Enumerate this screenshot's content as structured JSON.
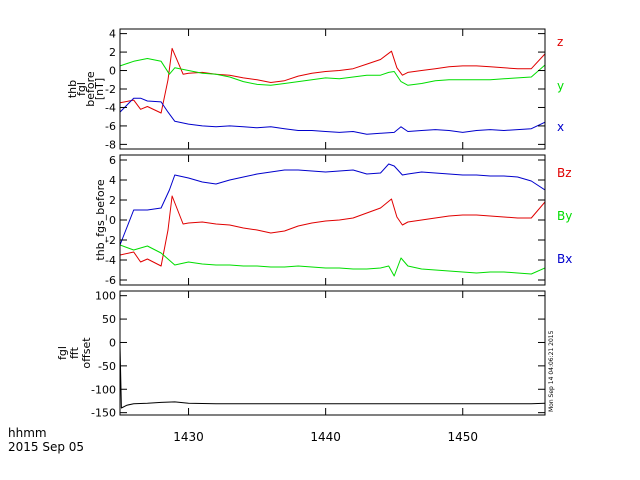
{
  "x_ticks": [
    1430,
    1440,
    1450
  ],
  "footer": {
    "time_format": "hhmm",
    "date": "2015 Sep 05"
  },
  "timestamp": "Mon Sep 14 04:06:21 2015",
  "colors": {
    "red": "#e00000",
    "green": "#00dd00",
    "blue": "#0000cc",
    "black": "#000000"
  },
  "chart_data": [
    {
      "type": "line",
      "ylabel_lines": [
        "thb",
        "fgl",
        "before",
        "[nT]"
      ],
      "xlim": [
        1425,
        1456
      ],
      "ylim": [
        -8.5,
        4.5
      ],
      "yticks": [
        -8,
        -6,
        -4,
        -2,
        0,
        2,
        4
      ],
      "series": [
        {
          "name": "z",
          "color": "#e00000",
          "x": [
            1425,
            1426,
            1426.5,
            1427,
            1428,
            1428.5,
            1428.8,
            1429.2,
            1429.6,
            1430,
            1431,
            1432,
            1433,
            1434,
            1435,
            1436,
            1437,
            1438,
            1439,
            1440,
            1441,
            1442,
            1443,
            1444,
            1444.8,
            1445.2,
            1445.6,
            1446,
            1447,
            1448,
            1449,
            1450,
            1451,
            1452,
            1453,
            1454,
            1455,
            1456
          ],
          "y": [
            -3.5,
            -3.2,
            -4.2,
            -3.9,
            -4.6,
            -1.0,
            2.4,
            1.0,
            -0.4,
            -0.3,
            -0.2,
            -0.4,
            -0.5,
            -0.8,
            -1.0,
            -1.3,
            -1.1,
            -0.6,
            -0.3,
            -0.1,
            0.0,
            0.2,
            0.7,
            1.2,
            2.1,
            0.3,
            -0.5,
            -0.2,
            0.0,
            0.2,
            0.4,
            0.5,
            0.5,
            0.4,
            0.3,
            0.2,
            0.2,
            1.8
          ]
        },
        {
          "name": "y",
          "color": "#00dd00",
          "x": [
            1425,
            1426,
            1427,
            1428,
            1428.6,
            1429,
            1430,
            1431,
            1432,
            1433,
            1434,
            1435,
            1436,
            1437,
            1438,
            1439,
            1440,
            1441,
            1442,
            1443,
            1444,
            1444.6,
            1445,
            1445.5,
            1446,
            1447,
            1448,
            1449,
            1450,
            1451,
            1452,
            1453,
            1454,
            1455,
            1456
          ],
          "y": [
            0.5,
            1.0,
            1.3,
            1.0,
            -0.4,
            0.3,
            0.0,
            -0.3,
            -0.4,
            -0.7,
            -1.2,
            -1.5,
            -1.6,
            -1.4,
            -1.2,
            -1.0,
            -0.8,
            -0.9,
            -0.7,
            -0.5,
            -0.5,
            -0.2,
            -0.1,
            -1.2,
            -1.6,
            -1.4,
            -1.1,
            -1.0,
            -1.0,
            -1.0,
            -1.0,
            -0.9,
            -0.8,
            -0.7,
            0.6
          ]
        },
        {
          "name": "x",
          "color": "#0000cc",
          "x": [
            1425,
            1426,
            1426.5,
            1427,
            1428,
            1428.5,
            1429,
            1430,
            1431,
            1432,
            1433,
            1434,
            1435,
            1436,
            1437,
            1438,
            1439,
            1440,
            1441,
            1442,
            1443,
            1444,
            1445,
            1445.5,
            1446,
            1447,
            1448,
            1449,
            1450,
            1451,
            1452,
            1453,
            1454,
            1455,
            1456
          ],
          "y": [
            -4.5,
            -3.0,
            -3.0,
            -3.3,
            -3.4,
            -4.5,
            -5.5,
            -5.8,
            -6.0,
            -6.1,
            -6.0,
            -6.1,
            -6.2,
            -6.1,
            -6.3,
            -6.5,
            -6.5,
            -6.6,
            -6.7,
            -6.6,
            -6.9,
            -6.8,
            -6.7,
            -6.1,
            -6.6,
            -6.5,
            -6.4,
            -6.5,
            -6.7,
            -6.5,
            -6.4,
            -6.5,
            -6.4,
            -6.3,
            -5.6
          ]
        }
      ]
    },
    {
      "type": "line",
      "ylabel_lines": [
        "thb_fgs_before"
      ],
      "xlim": [
        1425,
        1456
      ],
      "ylim": [
        -6.5,
        6.5
      ],
      "yticks": [
        -6,
        -4,
        -2,
        0,
        2,
        4,
        6
      ],
      "series": [
        {
          "name": "Bz",
          "color": "#e00000",
          "x": [
            1425,
            1426,
            1426.5,
            1427,
            1428,
            1428.5,
            1428.8,
            1429.2,
            1429.6,
            1430,
            1431,
            1432,
            1433,
            1434,
            1435,
            1436,
            1437,
            1438,
            1439,
            1440,
            1441,
            1442,
            1443,
            1444,
            1444.8,
            1445.2,
            1445.6,
            1446,
            1447,
            1448,
            1449,
            1450,
            1451,
            1452,
            1453,
            1454,
            1455,
            1456
          ],
          "y": [
            -3.5,
            -3.2,
            -4.2,
            -3.9,
            -4.6,
            -1.0,
            2.4,
            1.0,
            -0.4,
            -0.3,
            -0.2,
            -0.4,
            -0.5,
            -0.8,
            -1.0,
            -1.3,
            -1.1,
            -0.6,
            -0.3,
            -0.1,
            0.0,
            0.2,
            0.7,
            1.2,
            2.1,
            0.3,
            -0.5,
            -0.2,
            0.0,
            0.2,
            0.4,
            0.5,
            0.5,
            0.4,
            0.3,
            0.2,
            0.2,
            1.8
          ]
        },
        {
          "name": "By",
          "color": "#00dd00",
          "x": [
            1425,
            1426,
            1427,
            1428,
            1429,
            1430,
            1431,
            1432,
            1433,
            1434,
            1435,
            1436,
            1437,
            1438,
            1439,
            1440,
            1441,
            1442,
            1443,
            1444,
            1444.6,
            1445,
            1445.5,
            1446,
            1447,
            1448,
            1449,
            1450,
            1451,
            1452,
            1453,
            1454,
            1455,
            1456
          ],
          "y": [
            -2.5,
            -3.0,
            -2.6,
            -3.3,
            -4.5,
            -4.2,
            -4.4,
            -4.5,
            -4.5,
            -4.6,
            -4.6,
            -4.7,
            -4.7,
            -4.6,
            -4.7,
            -4.8,
            -4.8,
            -4.9,
            -4.9,
            -4.8,
            -4.6,
            -5.6,
            -3.8,
            -4.6,
            -4.9,
            -5.0,
            -5.1,
            -5.2,
            -5.3,
            -5.2,
            -5.2,
            -5.3,
            -5.4,
            -4.8
          ]
        },
        {
          "name": "Bx",
          "color": "#0000cc",
          "x": [
            1425,
            1426,
            1427,
            1428,
            1428.6,
            1429,
            1430,
            1431,
            1432,
            1433,
            1434,
            1435,
            1436,
            1437,
            1438,
            1439,
            1440,
            1441,
            1442,
            1443,
            1444,
            1444.6,
            1445,
            1445.6,
            1446,
            1447,
            1448,
            1449,
            1450,
            1451,
            1452,
            1453,
            1454,
            1455,
            1456
          ],
          "y": [
            -2.5,
            1.0,
            1.0,
            1.2,
            3.0,
            4.5,
            4.2,
            3.8,
            3.6,
            4.0,
            4.3,
            4.6,
            4.8,
            5.0,
            5.0,
            4.9,
            4.8,
            4.9,
            5.0,
            4.6,
            4.7,
            5.6,
            5.4,
            4.5,
            4.6,
            4.8,
            4.7,
            4.6,
            4.5,
            4.5,
            4.4,
            4.4,
            4.3,
            3.9,
            3.0
          ]
        }
      ]
    },
    {
      "type": "line",
      "ylabel_lines": [
        "fgl",
        "fft",
        "offset"
      ],
      "xlim": [
        1425,
        1456
      ],
      "ylim": [
        -155,
        110
      ],
      "yticks": [
        -150,
        -100,
        -50,
        0,
        50,
        100
      ],
      "series": [
        {
          "color": "#000000",
          "x": [
            1425,
            1425.1,
            1425.5,
            1426,
            1427,
            1428,
            1429,
            1430,
            1432,
            1435,
            1440,
            1445,
            1450,
            1455,
            1456
          ],
          "y": [
            -5,
            -140,
            -134,
            -131,
            -130,
            -128,
            -127,
            -130,
            -131,
            -131,
            -131,
            -131,
            -131,
            -131,
            -130
          ]
        }
      ]
    }
  ]
}
